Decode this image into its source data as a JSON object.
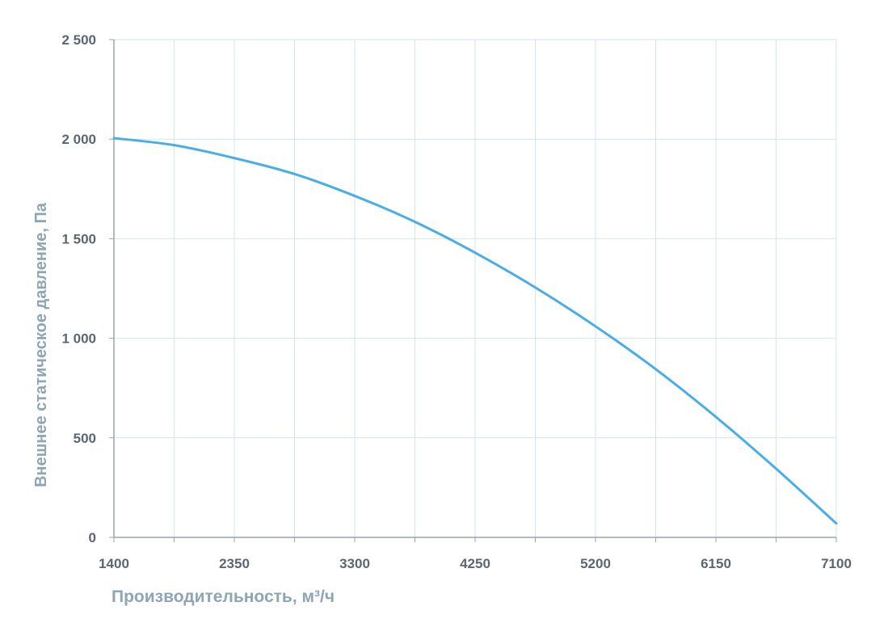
{
  "chart_data": {
    "type": "line",
    "title": "",
    "xlabel": "Производительность, м³/ч",
    "ylabel": "Внешнее  статическое  давление, Па",
    "xlim": [
      1400,
      7100
    ],
    "ylim": [
      0,
      2500
    ],
    "x_ticks": [
      "1400",
      "2350",
      "3300",
      "4250",
      "5200",
      "6150",
      "7100"
    ],
    "x_tick_values": [
      1400,
      2350,
      3300,
      4250,
      5200,
      6150,
      7100
    ],
    "x_minor_gridlines": [
      1875,
      2825,
      3775,
      4725,
      5675,
      6625
    ],
    "y_ticks": [
      "0",
      "500",
      "1 000",
      "1 500",
      "2 000",
      "2 500"
    ],
    "y_tick_values": [
      0,
      500,
      1000,
      1500,
      2000,
      2500
    ],
    "grid": true,
    "legend": "none",
    "colors": {
      "line": "#4aaee6",
      "grid": "#d6e4ef",
      "axis": "#9aa3ab",
      "tick_text": "#5b6670",
      "label_text": "#8da5b5"
    },
    "series": [
      {
        "x": [
          1400,
          1875,
          2350,
          2825,
          3300,
          3775,
          4250,
          4725,
          5200,
          5675,
          6150,
          6625,
          7100
        ],
        "y": [
          2005,
          1970,
          1905,
          1825,
          1715,
          1585,
          1430,
          1255,
          1060,
          845,
          605,
          345,
          70
        ]
      }
    ]
  }
}
